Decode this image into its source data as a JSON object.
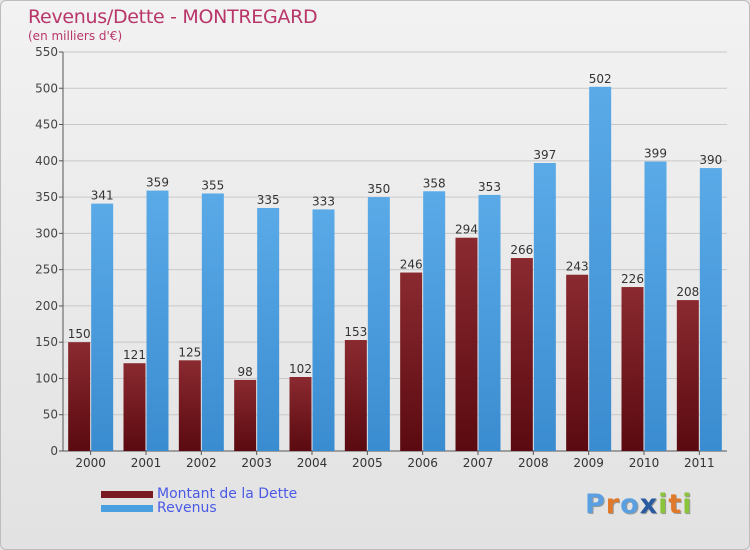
{
  "colors": {
    "dette": "#7a1a22",
    "revenus": "#4a9fe0",
    "title": "#b8366a",
    "legend_text": "#4a5ae6"
  },
  "logo": {
    "text": "Proxiti",
    "letters": [
      {
        "ch": "P",
        "color": "#5aa0e0"
      },
      {
        "ch": "r",
        "color": "#e07a2a"
      },
      {
        "ch": "o",
        "color": "#5aa0e0"
      },
      {
        "ch": "x",
        "color": "#2a5aa0"
      },
      {
        "ch": "i",
        "color": "#8ac43a"
      },
      {
        "ch": "t",
        "color": "#e07a2a"
      },
      {
        "ch": "i",
        "color": "#8ac43a"
      }
    ]
  },
  "chart_data": {
    "type": "bar",
    "title": "Revenus/Dette - MONTREGARD",
    "subtitle": "(en milliers d'€)",
    "categories": [
      "2000",
      "2001",
      "2002",
      "2003",
      "2004",
      "2005",
      "2006",
      "2007",
      "2008",
      "2009",
      "2010",
      "2011"
    ],
    "series": [
      {
        "name": "Montant de la Dette",
        "values": [
          150,
          121,
          125,
          98,
          102,
          153,
          246,
          294,
          266,
          243,
          226,
          208
        ]
      },
      {
        "name": "Revenus",
        "values": [
          341,
          359,
          355,
          335,
          333,
          350,
          358,
          353,
          397,
          502,
          399,
          390
        ]
      }
    ],
    "ylim": [
      0,
      550
    ],
    "yticks": [
      0,
      50,
      100,
      150,
      200,
      250,
      300,
      350,
      400,
      450,
      500,
      550
    ],
    "grid": true,
    "legend_position": "bottom-left"
  }
}
